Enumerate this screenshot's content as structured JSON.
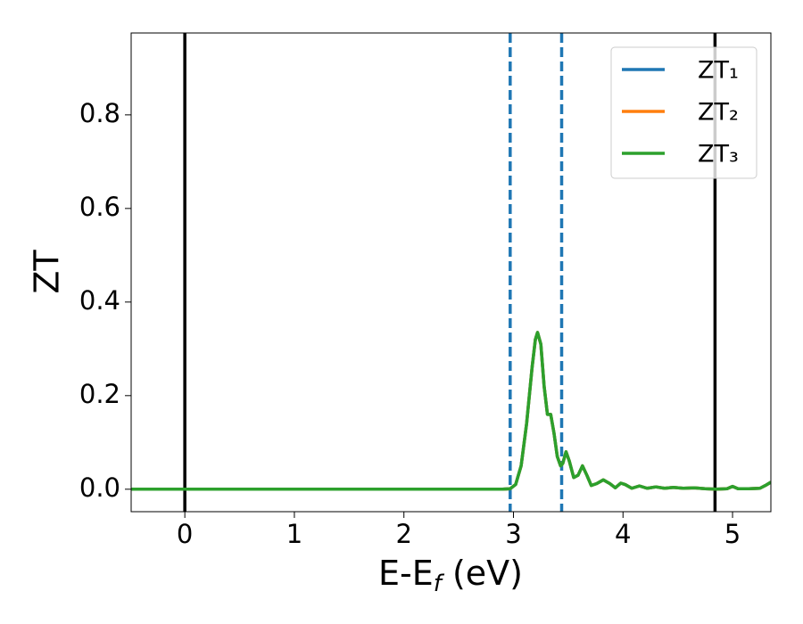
{
  "chart_data": {
    "type": "line",
    "xlabel": [
      "E-E",
      "f",
      " (eV)"
    ],
    "ylabel": "ZT",
    "x": [
      -0.49,
      0,
      1,
      2,
      2.9,
      2.97,
      3.02,
      3.07,
      3.12,
      3.17,
      3.2,
      3.22,
      3.25,
      3.28,
      3.31,
      3.34,
      3.37,
      3.4,
      3.43,
      3.45,
      3.48,
      3.51,
      3.55,
      3.59,
      3.63,
      3.67,
      3.71,
      3.76,
      3.82,
      3.88,
      3.93,
      3.98,
      4.02,
      4.08,
      4.15,
      4.22,
      4.3,
      4.38,
      4.46,
      4.55,
      4.65,
      4.75,
      4.85,
      4.95,
      5.0,
      5.05,
      5.15,
      5.25,
      5.3,
      5.35
    ],
    "series": [
      {
        "name": "ZT₁",
        "color": "#1f77b4",
        "values": [
          0,
          0,
          0,
          0,
          0,
          0.001,
          0.01,
          0.05,
          0.14,
          0.26,
          0.32,
          0.335,
          0.31,
          0.22,
          0.16,
          0.16,
          0.12,
          0.07,
          0.05,
          0.055,
          0.08,
          0.06,
          0.025,
          0.03,
          0.05,
          0.03,
          0.008,
          0.012,
          0.02,
          0.012,
          0.003,
          0.013,
          0.01,
          0.002,
          0.007,
          0.002,
          0.005,
          0.002,
          0.004,
          0.002,
          0.003,
          0.001,
          0,
          0.001,
          0.006,
          0.001,
          0.001,
          0.002,
          0.008,
          0.015
        ]
      },
      {
        "name": "ZT₂",
        "color": "#ff7f0e",
        "values": [
          0,
          0,
          0,
          0,
          0,
          0.001,
          0.01,
          0.05,
          0.14,
          0.26,
          0.32,
          0.335,
          0.31,
          0.22,
          0.16,
          0.16,
          0.12,
          0.07,
          0.05,
          0.055,
          0.08,
          0.06,
          0.025,
          0.03,
          0.05,
          0.03,
          0.008,
          0.012,
          0.02,
          0.012,
          0.003,
          0.013,
          0.01,
          0.002,
          0.007,
          0.002,
          0.005,
          0.002,
          0.004,
          0.002,
          0.003,
          0.001,
          0,
          0.001,
          0.006,
          0.001,
          0.001,
          0.002,
          0.008,
          0.015
        ]
      },
      {
        "name": "ZT₃",
        "color": "#2ca02c",
        "values": [
          0,
          0,
          0,
          0,
          0,
          0.001,
          0.01,
          0.05,
          0.14,
          0.26,
          0.32,
          0.335,
          0.31,
          0.22,
          0.16,
          0.16,
          0.12,
          0.07,
          0.05,
          0.055,
          0.08,
          0.06,
          0.025,
          0.03,
          0.05,
          0.03,
          0.008,
          0.012,
          0.02,
          0.012,
          0.003,
          0.013,
          0.01,
          0.002,
          0.007,
          0.002,
          0.005,
          0.002,
          0.004,
          0.002,
          0.003,
          0.001,
          0,
          0.001,
          0.006,
          0.001,
          0.001,
          0.002,
          0.008,
          0.015
        ]
      }
    ],
    "vlines": [
      {
        "x": 0,
        "color": "#000000",
        "style": "solid"
      },
      {
        "x": 4.84,
        "color": "#000000",
        "style": "solid"
      },
      {
        "x": 2.97,
        "color": "#1f77b4",
        "style": "dashed"
      },
      {
        "x": 3.44,
        "color": "#1f77b4",
        "style": "dashed"
      }
    ],
    "xlim": [
      -0.49,
      5.35
    ],
    "ylim": [
      -0.048,
      0.975
    ],
    "xticks": [
      0,
      1,
      2,
      3,
      4,
      5
    ],
    "yticks": [
      {
        "value": 0,
        "label": "0.0"
      },
      {
        "value": 0.2,
        "label": "0.2"
      },
      {
        "value": 0.4,
        "label": "0.4"
      },
      {
        "value": 0.6,
        "label": "0.6"
      },
      {
        "value": 0.8,
        "label": "0.8"
      }
    ],
    "grid": false,
    "legend": "upper right"
  }
}
